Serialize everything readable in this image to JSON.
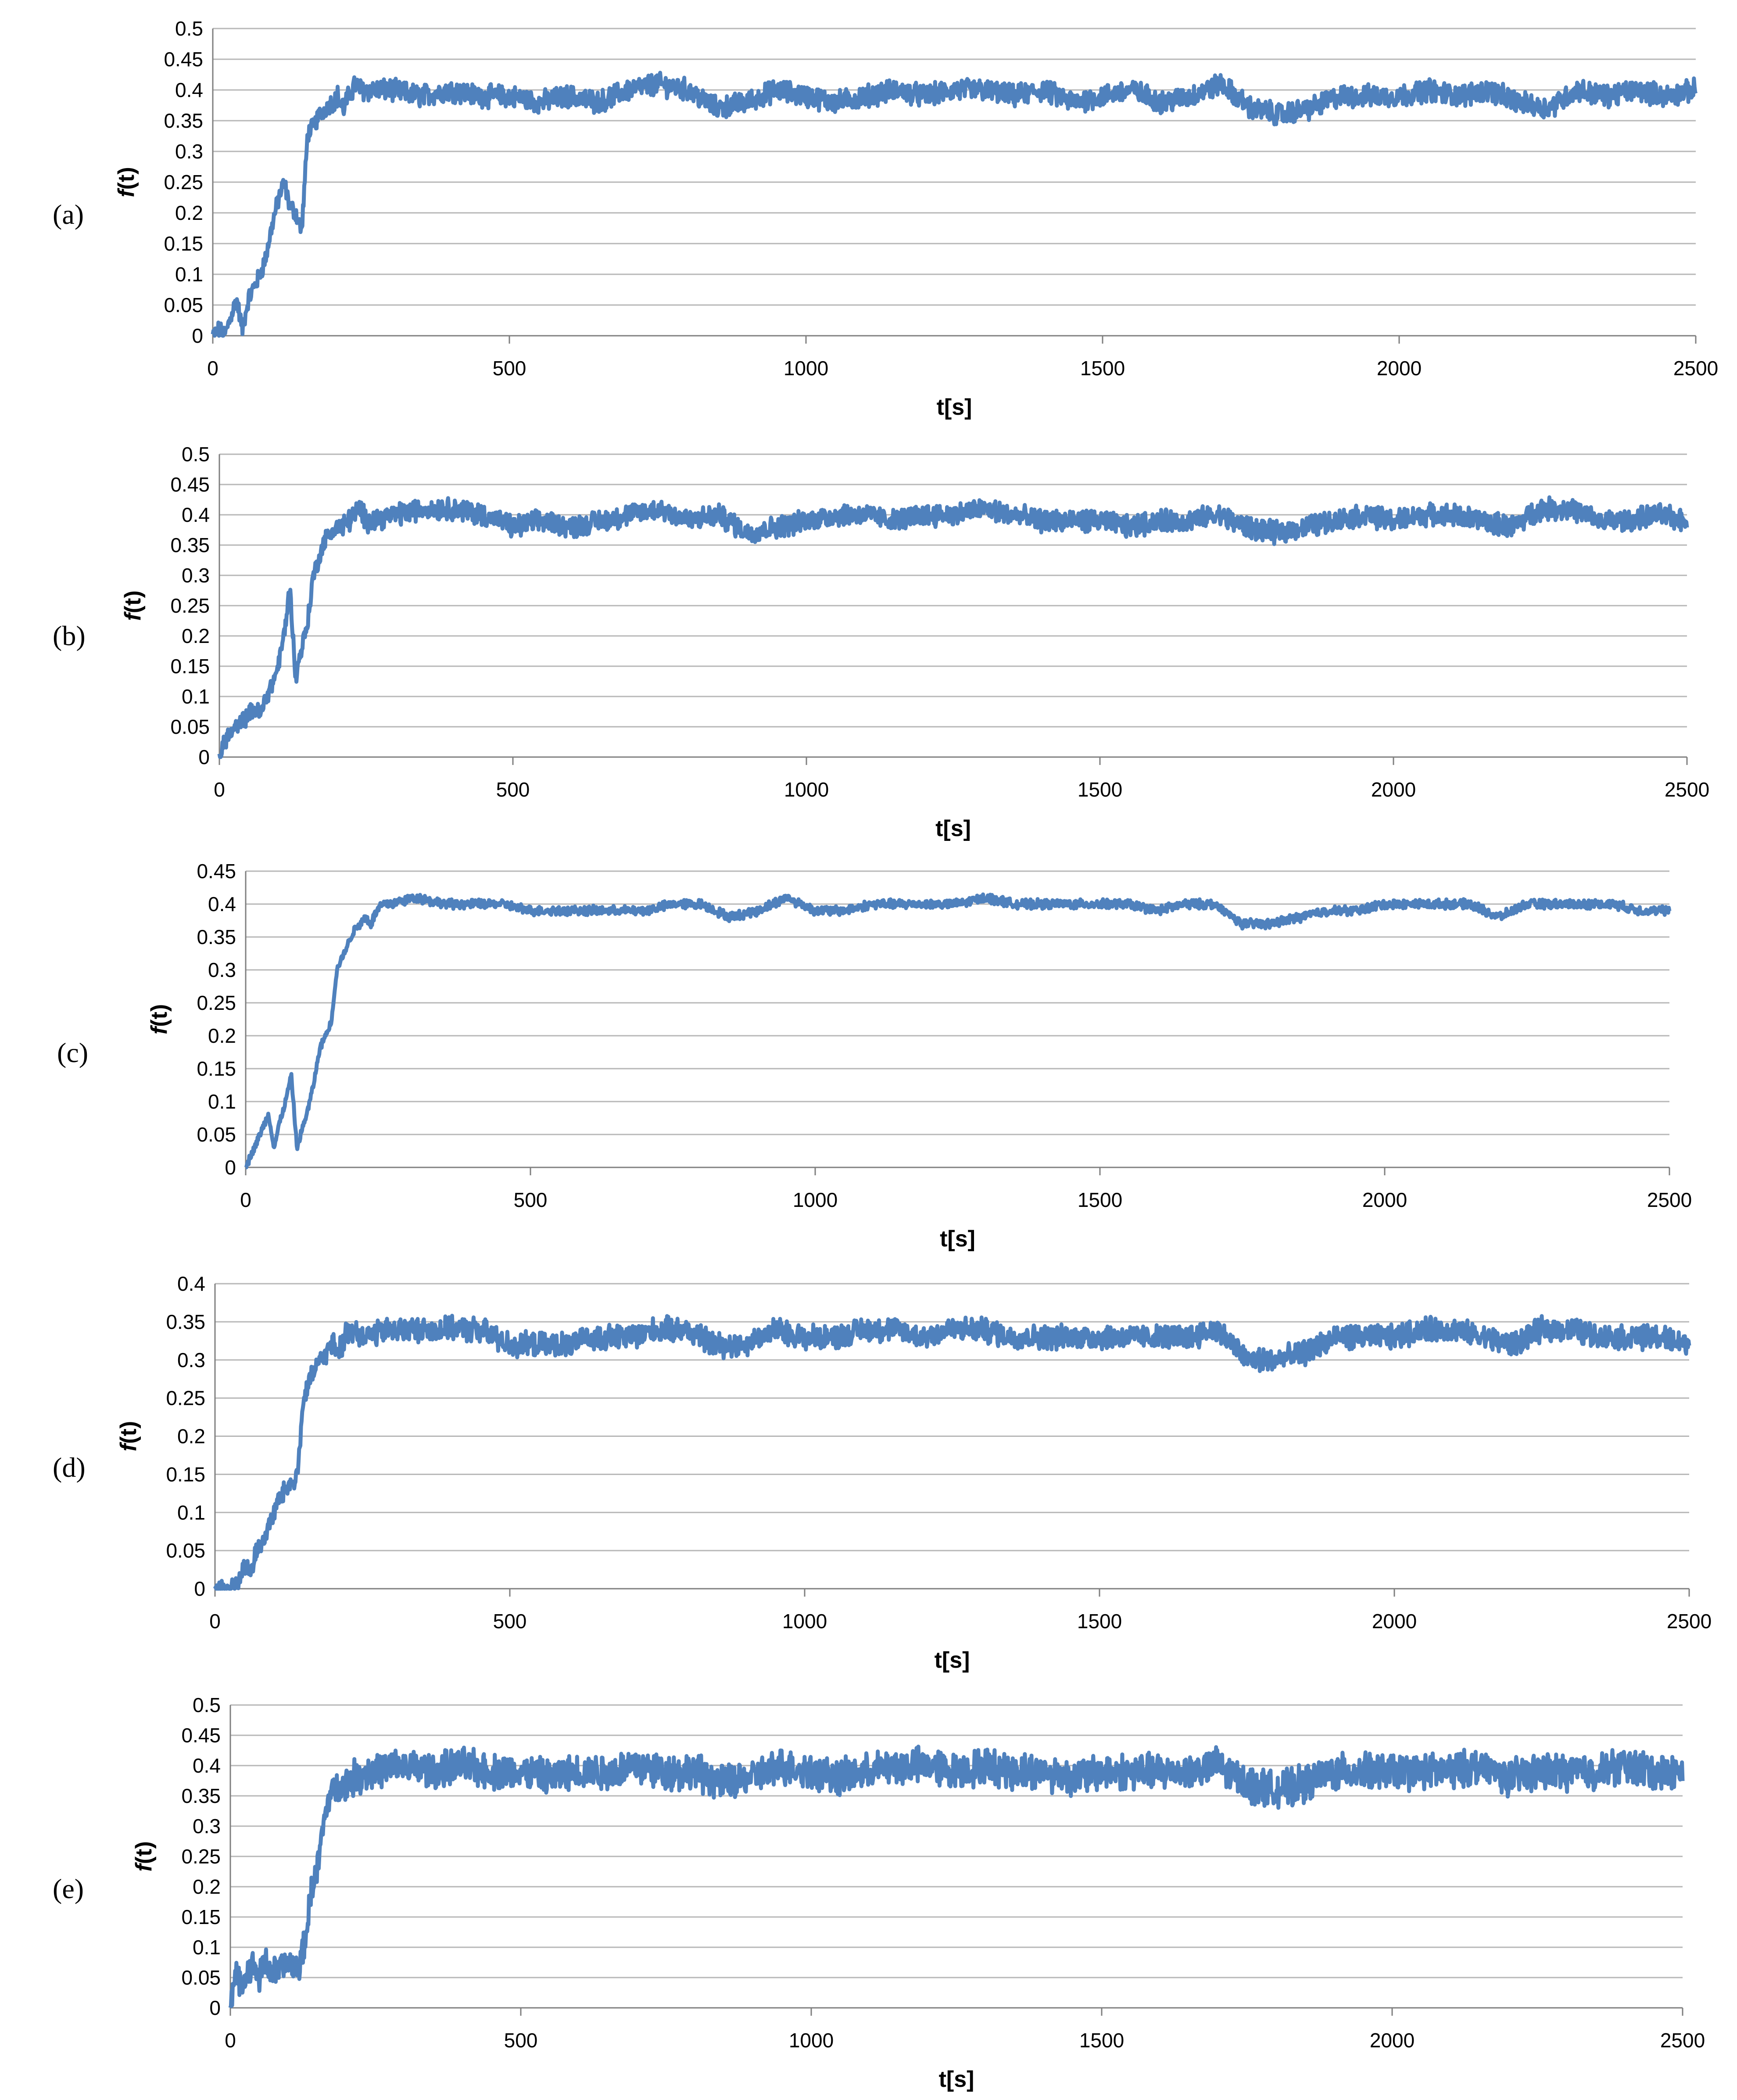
{
  "chart_data": [
    {
      "type": "line",
      "panel": "(a)",
      "series": [
        {
          "x": [
            0,
            10,
            20,
            30,
            40,
            50,
            60,
            70,
            80,
            90,
            100,
            110,
            120,
            130,
            140,
            150,
            160,
            170,
            180,
            190,
            200,
            210,
            220,
            230,
            240,
            250,
            300,
            350,
            400,
            450,
            500,
            550,
            600,
            650,
            700,
            750,
            800,
            850,
            900,
            950,
            1000,
            1050,
            1100,
            1150,
            1200,
            1250,
            1300,
            1350,
            1400,
            1450,
            1500,
            1550,
            1600,
            1650,
            1700,
            1750,
            1800,
            1850,
            1900,
            1950,
            2000,
            2050,
            2100,
            2150,
            2200,
            2250,
            2300,
            2350,
            2400,
            2450,
            2500
          ],
          "y": [
            0,
            0.01,
            0,
            0.03,
            0.06,
            0.01,
            0.06,
            0.08,
            0.1,
            0.13,
            0.18,
            0.22,
            0.25,
            0.21,
            0.2,
            0.17,
            0.33,
            0.34,
            0.36,
            0.37,
            0.38,
            0.39,
            0.37,
            0.39,
            0.41,
            0.4,
            0.4,
            0.39,
            0.4,
            0.39,
            0.39,
            0.38,
            0.39,
            0.38,
            0.4,
            0.41,
            0.4,
            0.37,
            0.38,
            0.4,
            0.39,
            0.38,
            0.39,
            0.4,
            0.39,
            0.4,
            0.4,
            0.39,
            0.4,
            0.38,
            0.39,
            0.4,
            0.38,
            0.39,
            0.41,
            0.37,
            0.36,
            0.37,
            0.39,
            0.39,
            0.39,
            0.4,
            0.39,
            0.4,
            0.38,
            0.37,
            0.4,
            0.39,
            0.4,
            0.39,
            0.4
          ],
          "noise": 0.016
        }
      ],
      "xlim": [
        0,
        2500
      ],
      "ylim": [
        0,
        0.5
      ],
      "yticks": [
        "0",
        "0.05",
        "0.1",
        "0.15",
        "0.2",
        "0.25",
        "0.3",
        "0.35",
        "0.4",
        "0.45",
        "0.5"
      ],
      "xticks": [
        "0",
        "500",
        "1000",
        "1500",
        "2000",
        "2500"
      ],
      "xlabel": "t[s]",
      "ylabel_italic": "f",
      "ylabel_rest": "(t)",
      "grid": true,
      "line_color": "#4f81bd"
    },
    {
      "type": "line",
      "panel": "(b)",
      "series": [
        {
          "x": [
            0,
            10,
            20,
            30,
            40,
            50,
            60,
            70,
            80,
            90,
            100,
            110,
            120,
            130,
            140,
            150,
            160,
            170,
            180,
            190,
            200,
            210,
            220,
            230,
            240,
            250,
            300,
            350,
            400,
            450,
            500,
            550,
            600,
            650,
            700,
            750,
            800,
            850,
            900,
            950,
            1000,
            1050,
            1100,
            1150,
            1200,
            1250,
            1300,
            1350,
            1400,
            1450,
            1500,
            1550,
            1600,
            1650,
            1700,
            1750,
            1800,
            1850,
            1900,
            1950,
            2000,
            2050,
            2100,
            2150,
            2200,
            2250,
            2300,
            2350,
            2400,
            2450,
            2500
          ],
          "y": [
            0,
            0.03,
            0.04,
            0.05,
            0.06,
            0.07,
            0.08,
            0.07,
            0.1,
            0.12,
            0.15,
            0.2,
            0.28,
            0.13,
            0.18,
            0.22,
            0.3,
            0.33,
            0.36,
            0.37,
            0.38,
            0.38,
            0.39,
            0.4,
            0.41,
            0.39,
            0.4,
            0.41,
            0.41,
            0.4,
            0.38,
            0.39,
            0.38,
            0.39,
            0.4,
            0.41,
            0.39,
            0.4,
            0.37,
            0.38,
            0.39,
            0.4,
            0.4,
            0.39,
            0.4,
            0.4,
            0.41,
            0.4,
            0.39,
            0.39,
            0.39,
            0.38,
            0.39,
            0.39,
            0.4,
            0.38,
            0.37,
            0.38,
            0.39,
            0.4,
            0.39,
            0.4,
            0.4,
            0.39,
            0.38,
            0.41,
            0.41,
            0.39,
            0.39,
            0.4,
            0.39
          ],
          "noise": 0.016
        }
      ],
      "xlim": [
        0,
        2500
      ],
      "ylim": [
        0,
        0.5
      ],
      "yticks": [
        "0",
        "0.05",
        "0.1",
        "0.15",
        "0.2",
        "0.25",
        "0.3",
        "0.35",
        "0.4",
        "0.45",
        "0.5"
      ],
      "xticks": [
        "0",
        "500",
        "1000",
        "1500",
        "2000",
        "2500"
      ],
      "xlabel": "t[s]",
      "ylabel_italic": "f",
      "ylabel_rest": "(t)",
      "grid": true,
      "line_color": "#4f81bd"
    },
    {
      "type": "line",
      "panel": "(c)",
      "series": [
        {
          "x": [
            0,
            10,
            20,
            30,
            40,
            50,
            60,
            70,
            80,
            90,
            100,
            110,
            120,
            130,
            140,
            150,
            160,
            170,
            180,
            190,
            200,
            210,
            220,
            230,
            240,
            250,
            300,
            350,
            400,
            450,
            500,
            550,
            600,
            650,
            700,
            750,
            800,
            850,
            900,
            950,
            1000,
            1050,
            1100,
            1150,
            1200,
            1250,
            1300,
            1350,
            1400,
            1450,
            1500,
            1550,
            1600,
            1650,
            1700,
            1750,
            1800,
            1850,
            1900,
            1950,
            2000,
            2050,
            2100,
            2150,
            2200,
            2250,
            2300,
            2350,
            2400,
            2450,
            2500
          ],
          "y": [
            0,
            0.02,
            0.04,
            0.06,
            0.08,
            0.03,
            0.07,
            0.1,
            0.14,
            0.03,
            0.06,
            0.09,
            0.13,
            0.18,
            0.2,
            0.22,
            0.3,
            0.32,
            0.34,
            0.36,
            0.37,
            0.38,
            0.37,
            0.39,
            0.4,
            0.4,
            0.41,
            0.4,
            0.4,
            0.4,
            0.39,
            0.39,
            0.39,
            0.39,
            0.39,
            0.4,
            0.4,
            0.38,
            0.39,
            0.41,
            0.39,
            0.39,
            0.4,
            0.4,
            0.4,
            0.4,
            0.41,
            0.4,
            0.4,
            0.4,
            0.4,
            0.4,
            0.39,
            0.4,
            0.4,
            0.37,
            0.37,
            0.38,
            0.39,
            0.39,
            0.4,
            0.4,
            0.4,
            0.4,
            0.38,
            0.4,
            0.4,
            0.4,
            0.4,
            0.39,
            0.39
          ],
          "noise": 0.006
        }
      ],
      "xlim": [
        0,
        2500
      ],
      "ylim": [
        0,
        0.45
      ],
      "yticks": [
        "0",
        "0.05",
        "0.1",
        "0.15",
        "0.2",
        "0.25",
        "0.3",
        "0.35",
        "0.4",
        "0.45"
      ],
      "xticks": [
        "0",
        "500",
        "1000",
        "1500",
        "2000",
        "2500"
      ],
      "xlabel": "t[s]",
      "ylabel_italic": "f",
      "ylabel_rest": "(t)",
      "grid": true,
      "line_color": "#4f81bd"
    },
    {
      "type": "line",
      "panel": "(d)",
      "series": [
        {
          "x": [
            0,
            10,
            20,
            30,
            40,
            50,
            60,
            70,
            80,
            90,
            100,
            110,
            120,
            130,
            140,
            150,
            160,
            170,
            180,
            190,
            200,
            210,
            220,
            230,
            240,
            250,
            300,
            350,
            400,
            450,
            500,
            550,
            600,
            650,
            700,
            750,
            800,
            850,
            900,
            950,
            1000,
            1050,
            1100,
            1150,
            1200,
            1250,
            1300,
            1350,
            1400,
            1450,
            1500,
            1550,
            1600,
            1650,
            1700,
            1750,
            1800,
            1850,
            1900,
            1950,
            2000,
            2050,
            2100,
            2150,
            2200,
            2250,
            2300,
            2350,
            2400,
            2450,
            2500
          ],
          "y": [
            0,
            0,
            0,
            0,
            0.01,
            0.03,
            0.02,
            0.05,
            0.06,
            0.08,
            0.1,
            0.12,
            0.13,
            0.14,
            0.15,
            0.25,
            0.27,
            0.29,
            0.3,
            0.31,
            0.32,
            0.31,
            0.33,
            0.34,
            0.34,
            0.33,
            0.34,
            0.34,
            0.34,
            0.34,
            0.32,
            0.32,
            0.32,
            0.33,
            0.33,
            0.34,
            0.34,
            0.32,
            0.32,
            0.34,
            0.33,
            0.33,
            0.34,
            0.34,
            0.33,
            0.34,
            0.34,
            0.33,
            0.33,
            0.33,
            0.33,
            0.33,
            0.33,
            0.33,
            0.34,
            0.3,
            0.3,
            0.31,
            0.33,
            0.33,
            0.33,
            0.34,
            0.34,
            0.33,
            0.32,
            0.34,
            0.34,
            0.33,
            0.33,
            0.33,
            0.32
          ],
          "noise": 0.014
        }
      ],
      "xlim": [
        0,
        2500
      ],
      "ylim": [
        0,
        0.4
      ],
      "yticks": [
        "0",
        "0.05",
        "0.1",
        "0.15",
        "0.2",
        "0.25",
        "0.3",
        "0.35",
        "0.4"
      ],
      "xticks": [
        "0",
        "500",
        "1000",
        "1500",
        "2000",
        "2500"
      ],
      "xlabel": "t[s]",
      "ylabel_italic": "f",
      "ylabel_rest": "(t)",
      "grid": true,
      "line_color": "#4f81bd"
    },
    {
      "type": "line",
      "panel": "(e)",
      "series": [
        {
          "x": [
            0,
            10,
            20,
            30,
            40,
            50,
            60,
            70,
            80,
            90,
            100,
            110,
            120,
            130,
            140,
            150,
            160,
            170,
            180,
            190,
            200,
            210,
            220,
            230,
            240,
            250,
            300,
            350,
            400,
            450,
            500,
            550,
            600,
            650,
            700,
            750,
            800,
            850,
            900,
            950,
            1000,
            1050,
            1100,
            1150,
            1200,
            1250,
            1300,
            1350,
            1400,
            1450,
            1500,
            1550,
            1600,
            1650,
            1700,
            1750,
            1800,
            1850,
            1900,
            1950,
            2000,
            2050,
            2100,
            2150,
            2200,
            2250,
            2300,
            2350,
            2400,
            2450,
            2500
          ],
          "y": [
            0.02,
            0.05,
            0.04,
            0.06,
            0.07,
            0.05,
            0.08,
            0.06,
            0.06,
            0.07,
            0.07,
            0.07,
            0.07,
            0.12,
            0.2,
            0.23,
            0.3,
            0.35,
            0.36,
            0.37,
            0.37,
            0.38,
            0.38,
            0.39,
            0.39,
            0.39,
            0.4,
            0.39,
            0.4,
            0.39,
            0.39,
            0.38,
            0.39,
            0.39,
            0.4,
            0.39,
            0.39,
            0.37,
            0.38,
            0.4,
            0.39,
            0.38,
            0.39,
            0.4,
            0.4,
            0.39,
            0.4,
            0.39,
            0.39,
            0.38,
            0.39,
            0.39,
            0.39,
            0.39,
            0.4,
            0.37,
            0.36,
            0.37,
            0.39,
            0.39,
            0.39,
            0.39,
            0.39,
            0.4,
            0.38,
            0.39,
            0.39,
            0.39,
            0.4,
            0.39,
            0.39
          ],
          "noise": 0.026
        }
      ],
      "xlim": [
        0,
        2500
      ],
      "ylim": [
        0,
        0.5
      ],
      "yticks": [
        "0",
        "0.05",
        "0.1",
        "0.15",
        "0.2",
        "0.25",
        "0.3",
        "0.35",
        "0.4",
        "0.45",
        "0.5"
      ],
      "xticks": [
        "0",
        "500",
        "1000",
        "1500",
        "2000",
        "2500"
      ],
      "xlabel": "t[s]",
      "ylabel_italic": "f",
      "ylabel_rest": "(t)",
      "grid": true,
      "line_color": "#4f81bd"
    }
  ]
}
